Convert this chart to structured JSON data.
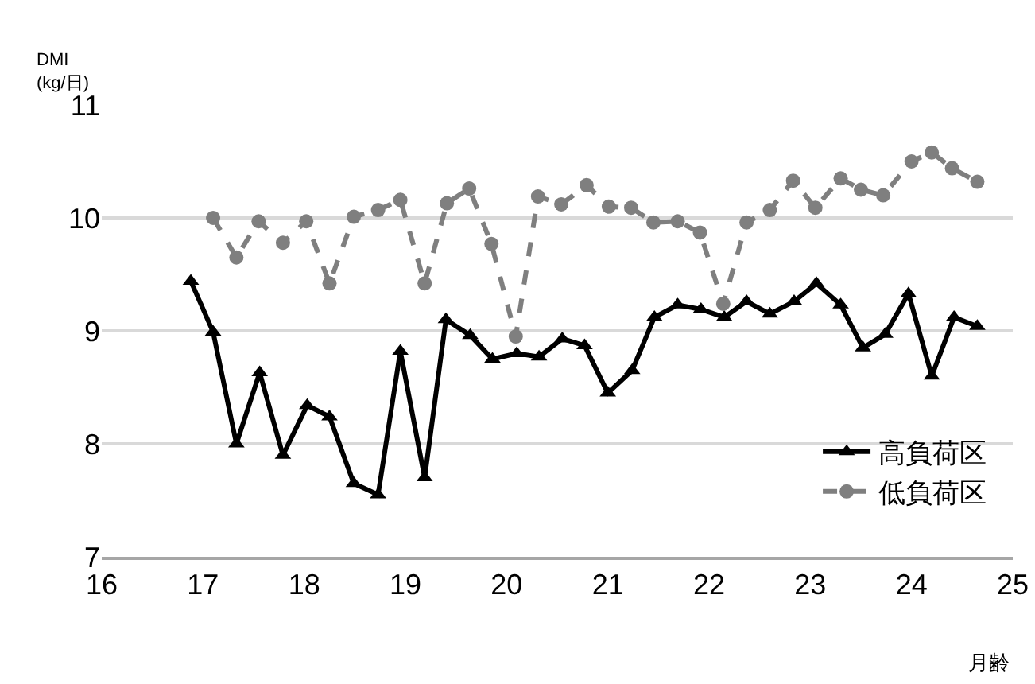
{
  "chart_data": {
    "type": "line",
    "ylabel": "DMI\n(kg/日)",
    "xlabel": "月齢",
    "xlim": [
      16,
      25
    ],
    "xticks": [
      16,
      17,
      18,
      19,
      20,
      21,
      22,
      23,
      24,
      25
    ],
    "ylim": [
      7,
      11
    ],
    "yticks": [
      7,
      8,
      9,
      10,
      11
    ],
    "grid": "y",
    "legend": "bottom right",
    "series": [
      {
        "name": "高負荷区",
        "color": "#000000",
        "marker": "triangle",
        "line_style": "solid",
        "x": [
          16.88,
          17.1,
          17.33,
          17.56,
          17.79,
          18.03,
          18.25,
          18.49,
          18.73,
          18.95,
          19.19,
          19.4,
          19.64,
          19.86,
          20.1,
          20.32,
          20.55,
          20.77,
          21.0,
          21.24,
          21.46,
          21.69,
          21.92,
          22.15,
          22.37,
          22.6,
          22.84,
          23.06,
          23.3,
          23.52,
          23.74,
          23.97,
          24.2,
          24.42,
          24.65
        ],
        "values": [
          9.44,
          8.99,
          8.0,
          8.63,
          7.9,
          8.34,
          8.24,
          7.65,
          7.55,
          8.82,
          7.7,
          9.1,
          8.96,
          8.75,
          8.8,
          8.77,
          8.93,
          8.87,
          8.45,
          8.65,
          9.12,
          9.23,
          9.19,
          9.12,
          9.26,
          9.15,
          9.26,
          9.42,
          9.23,
          8.85,
          8.97,
          9.33,
          8.6,
          9.12,
          9.04
        ]
      },
      {
        "name": "低負荷区",
        "color": "#7f7f7f",
        "marker": "circle",
        "line_style": "dashed",
        "x": [
          17.1,
          17.33,
          17.55,
          17.79,
          18.02,
          18.25,
          18.49,
          18.73,
          18.95,
          19.19,
          19.41,
          19.63,
          19.85,
          20.09,
          20.31,
          20.54,
          20.79,
          21.01,
          21.23,
          21.45,
          21.69,
          21.91,
          22.14,
          22.37,
          22.6,
          22.83,
          23.05,
          23.3,
          23.5,
          23.72,
          24.0,
          24.2,
          24.4,
          24.65
        ],
        "values": [
          10.0,
          9.65,
          9.97,
          9.78,
          9.97,
          9.42,
          10.01,
          10.07,
          10.16,
          9.42,
          10.13,
          10.26,
          9.77,
          8.95,
          10.19,
          10.12,
          10.29,
          10.1,
          10.09,
          9.96,
          9.97,
          9.87,
          9.24,
          9.96,
          10.07,
          10.33,
          10.09,
          10.35,
          10.25,
          10.2,
          10.5,
          10.58,
          10.44,
          10.32
        ]
      }
    ]
  }
}
